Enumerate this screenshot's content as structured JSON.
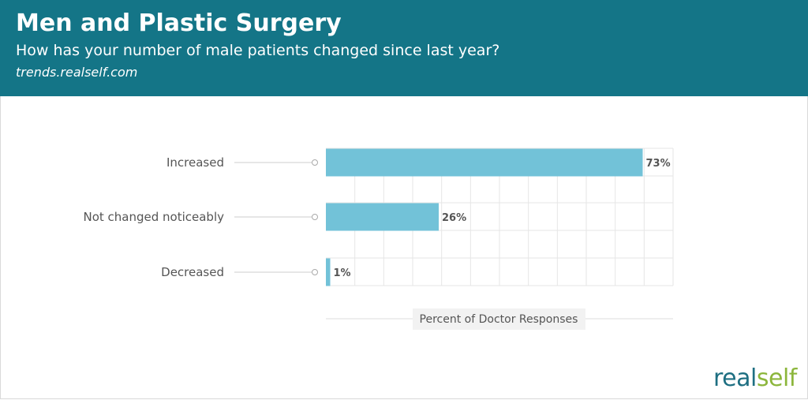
{
  "header": {
    "title": "Men and Plastic Surgery",
    "subtitle": "How has your number of male patients changed since last year?",
    "source": "trends.realself.com"
  },
  "colors": {
    "header_bg": "#147587",
    "bar": "#72c2d8",
    "grid": "#e6e6e6",
    "label_text": "#555555",
    "value_text": "#555555",
    "axis_box_bg": "#f2f2f2"
  },
  "logo": {
    "part1": "real",
    "part2": "self"
  },
  "chart_data": {
    "type": "bar",
    "orientation": "horizontal",
    "title": "Men and Plastic Surgery",
    "subtitle": "How has your number of male patients changed since last year?",
    "categories": [
      "Increased",
      "Not changed noticeably",
      "Decreased"
    ],
    "values": [
      73,
      26,
      1
    ],
    "value_labels": [
      "73%",
      "26%",
      "1%"
    ],
    "xlabel": "Percent of Doctor Responses",
    "xlim": [
      0,
      80
    ],
    "grid": true,
    "legend": "none"
  }
}
